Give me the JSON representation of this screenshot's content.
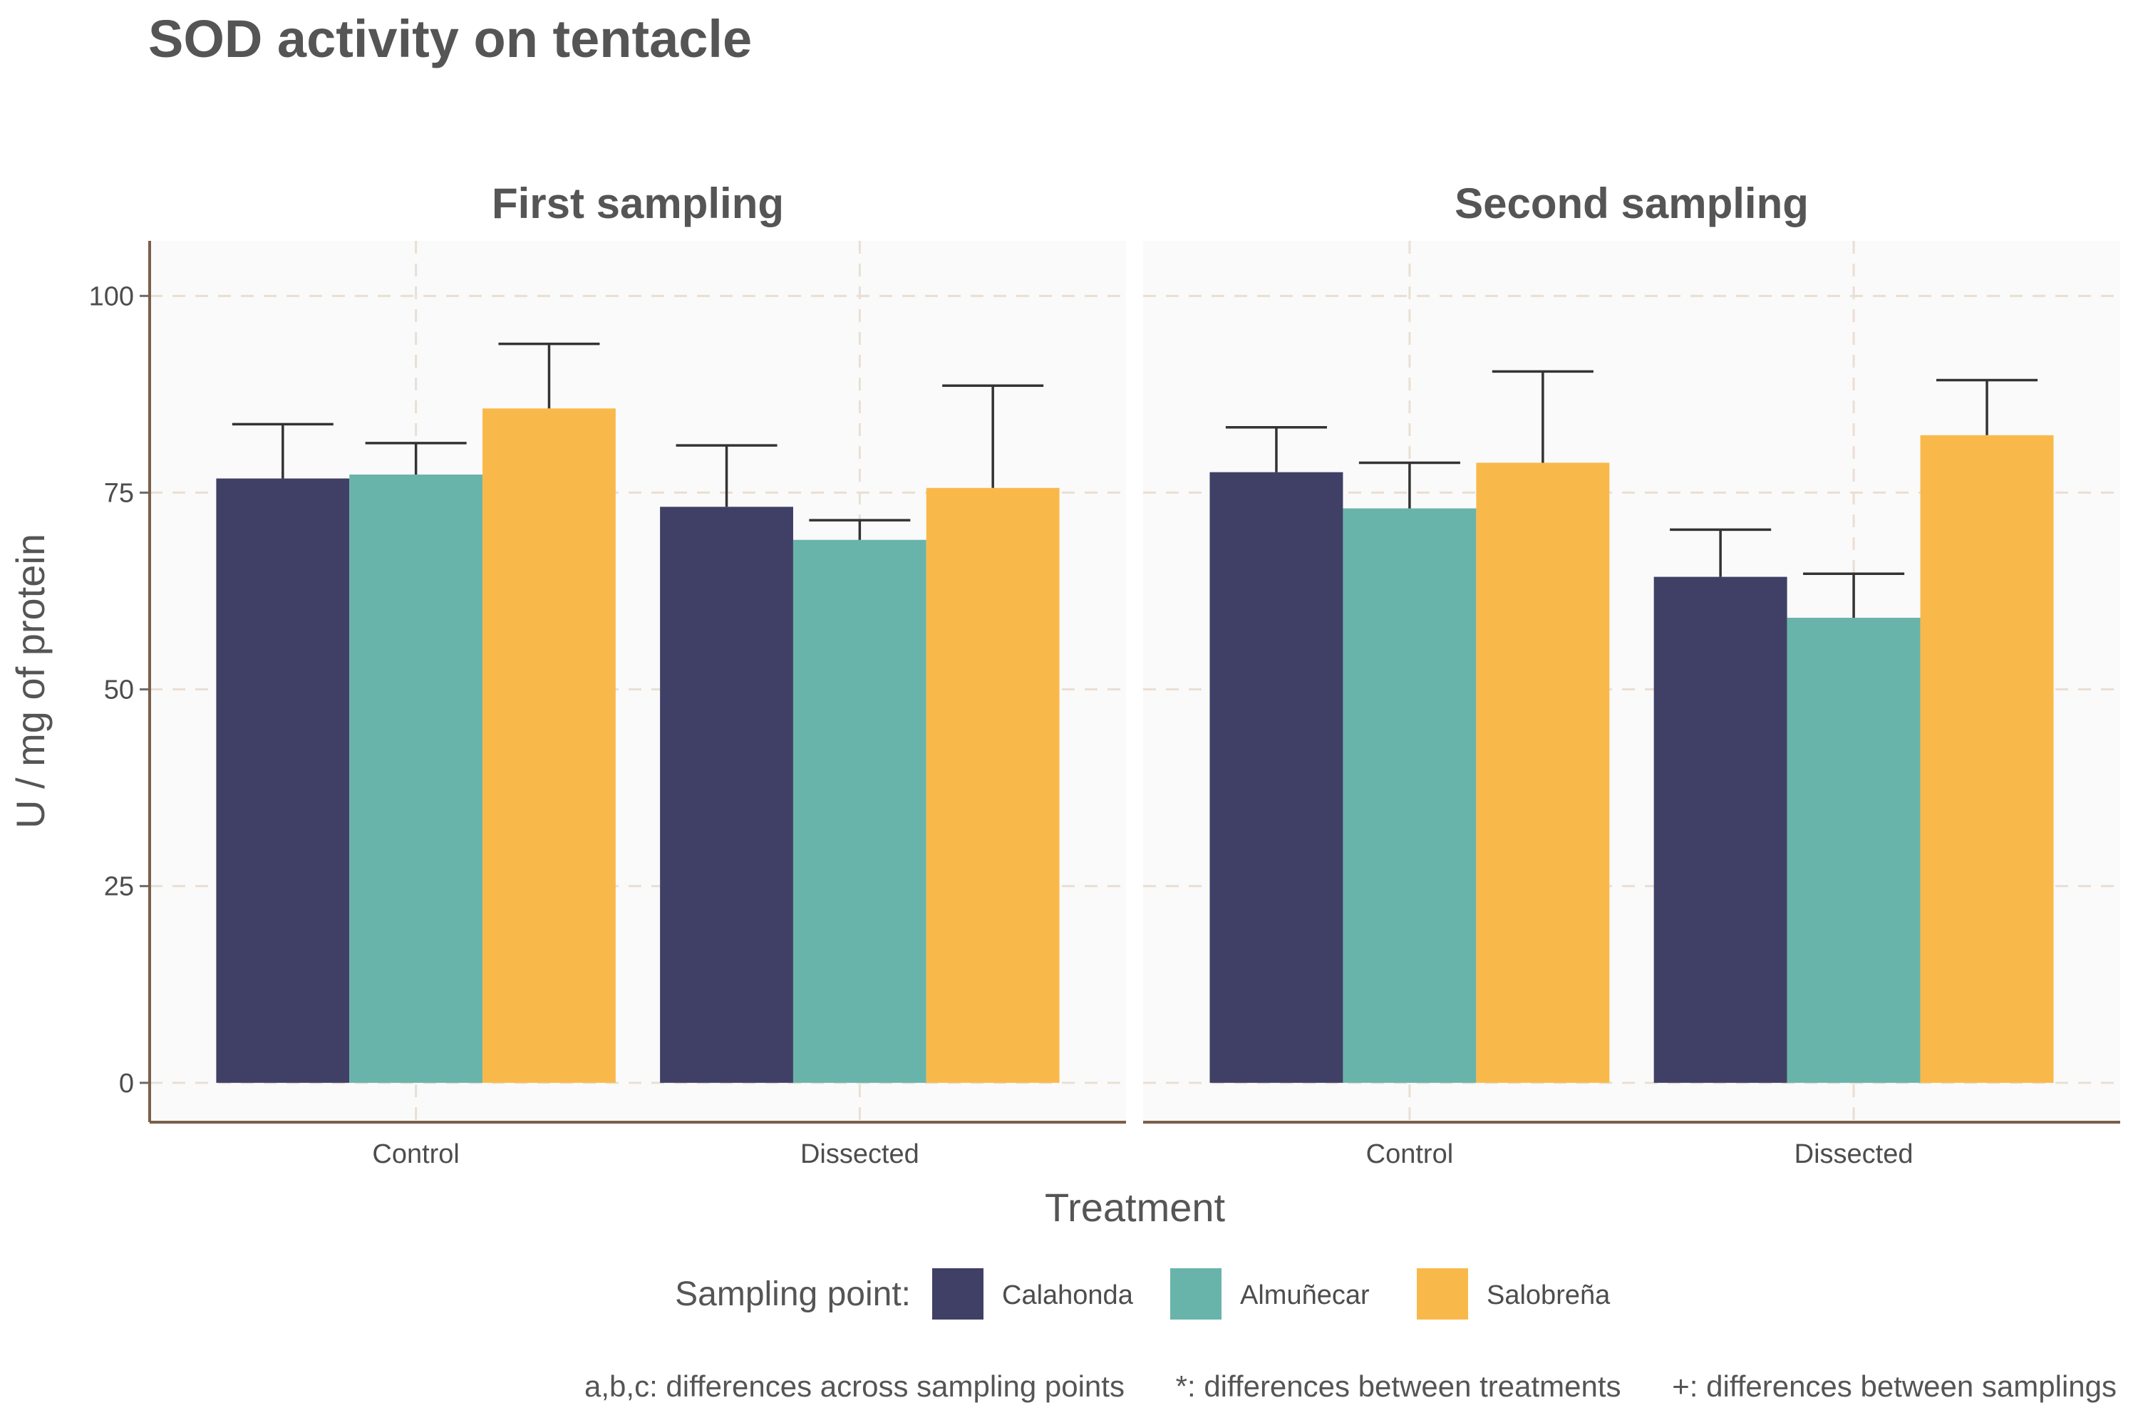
{
  "title": "SOD activity on tentacle",
  "x_axis_label": "Treatment",
  "y_axis_label": "U / mg  of protein",
  "legend_title": "Sampling point:",
  "footnotes": [
    "a,b,c: differences across sampling points",
    "*: differences between treatments",
    "+: differences between samplings"
  ],
  "colors": {
    "Calahonda": "#404066",
    "Almuñecar": "#69b4aa",
    "Salobreña": "#f9b94a",
    "panel_bg": "#fafafa",
    "grid": "#eadfd4",
    "axis": "#7a5f4a"
  },
  "chart_data": {
    "type": "bar",
    "title": "SOD activity on tentacle",
    "xlabel": "Treatment",
    "ylabel": "U / mg  of protein",
    "ylim": [
      -5,
      107
    ],
    "yticks": [
      0,
      25,
      50,
      75,
      100
    ],
    "grid": true,
    "legend_position": "bottom",
    "categories": [
      "Control",
      "Dissected"
    ],
    "series_names": [
      "Calahonda",
      "Almuñecar",
      "Salobreña"
    ],
    "panels": [
      {
        "name": "First sampling",
        "series": [
          {
            "name": "Calahonda",
            "values": [
              76.8,
              73.2
            ],
            "error_upper": [
              83.7,
              81.0
            ]
          },
          {
            "name": "Almuñecar",
            "values": [
              77.3,
              69.0
            ],
            "error_upper": [
              81.3,
              71.5
            ]
          },
          {
            "name": "Salobreña",
            "values": [
              85.7,
              75.6
            ],
            "error_upper": [
              93.9,
              88.6
            ]
          }
        ]
      },
      {
        "name": "Second sampling",
        "series": [
          {
            "name": "Calahonda",
            "values": [
              77.6,
              64.3
            ],
            "error_upper": [
              83.3,
              70.3
            ]
          },
          {
            "name": "Almuñecar",
            "values": [
              73.0,
              59.1
            ],
            "error_upper": [
              78.8,
              64.7
            ]
          },
          {
            "name": "Salobreña",
            "values": [
              78.8,
              82.3
            ],
            "error_upper": [
              90.4,
              89.3
            ]
          }
        ]
      }
    ]
  }
}
